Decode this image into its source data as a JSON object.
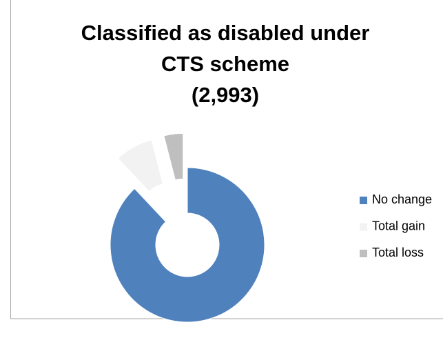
{
  "chart_data": {
    "type": "donut",
    "title": [
      "Classified as disabled under",
      "CTS scheme",
      "(2,993)"
    ],
    "categories": [
      "No change",
      "Total gain",
      "Total loss"
    ],
    "values": [
      88,
      8,
      4
    ],
    "colors": [
      "#4f81bd",
      "#f2f2f2",
      "#bfbfbf"
    ],
    "legend": "right"
  }
}
